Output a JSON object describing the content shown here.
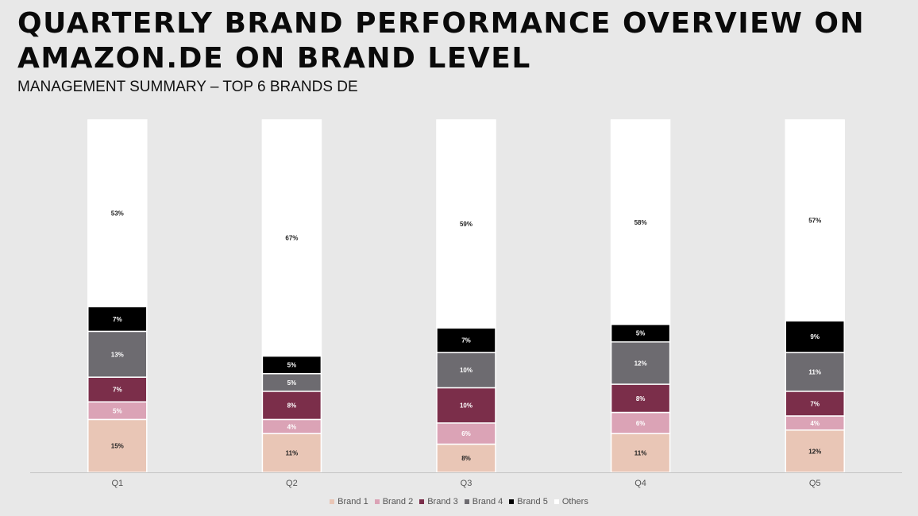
{
  "page": {
    "title": "QUARTERLY BRAND PERFORMANCE OVERVIEW ON AMAZON.DE ON BRAND LEVEL",
    "subtitle": "MANAGEMENT SUMMARY – TOP 6 BRANDS DE"
  },
  "chart_data": {
    "type": "bar",
    "stacked": true,
    "categories": [
      "Q1",
      "Q2",
      "Q3",
      "Q4",
      "Q5"
    ],
    "series": [
      {
        "name": "Brand 1",
        "color": "#e9c6b6",
        "label_color": "#222222",
        "values": [
          15,
          11,
          8,
          11,
          12
        ]
      },
      {
        "name": "Brand 2",
        "color": "#dba3b6",
        "label_color": "#ffffff",
        "values": [
          5,
          4,
          6,
          6,
          4
        ]
      },
      {
        "name": "Brand 3",
        "color": "#7b2e4a",
        "label_color": "#ffffff",
        "values": [
          7,
          8,
          10,
          8,
          7
        ]
      },
      {
        "name": "Brand 4",
        "color": "#6d6b70",
        "label_color": "#ffffff",
        "values": [
          13,
          5,
          10,
          12,
          11
        ]
      },
      {
        "name": "Brand 5",
        "color": "#000000",
        "label_color": "#ffffff",
        "values": [
          7,
          5,
          7,
          5,
          9
        ]
      },
      {
        "name": "Others",
        "color": "#ffffff",
        "label_color": "#222222",
        "values": [
          53,
          67,
          59,
          58,
          57
        ]
      }
    ],
    "value_suffix": "%",
    "ylim": [
      0,
      100
    ],
    "grid": false,
    "legend_position": "bottom"
  }
}
